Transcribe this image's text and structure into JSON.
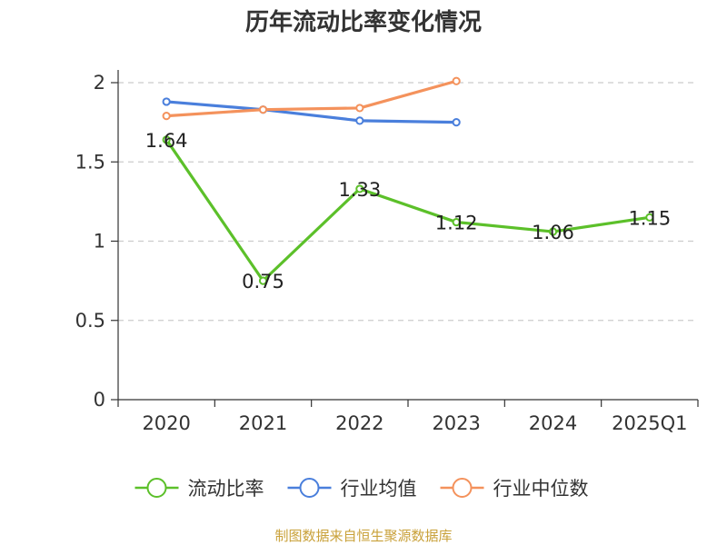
{
  "chart_data": {
    "type": "line",
    "title": "历年流动比率变化情况",
    "categories": [
      "2020",
      "2021",
      "2022",
      "2023",
      "2024",
      "2025Q1"
    ],
    "ylim": [
      0,
      2
    ],
    "yticks": [
      0,
      0.5,
      1,
      1.5,
      2
    ],
    "ytick_labels": [
      "0",
      "0.5",
      "1",
      "1.5",
      "2"
    ],
    "grid": true,
    "legend_position": "bottom",
    "series": [
      {
        "name": "流动比率",
        "color": "#5cc02a",
        "values": [
          1.64,
          0.75,
          1.33,
          1.12,
          1.06,
          1.15
        ],
        "data_labels": [
          "1.64",
          "0.75",
          "1.33",
          "1.12",
          "1.06",
          "1.15"
        ]
      },
      {
        "name": "行业均值",
        "color": "#4a7fdc",
        "values": [
          1.88,
          1.83,
          1.76,
          1.75,
          null,
          null
        ]
      },
      {
        "name": "行业中位数",
        "color": "#f4925c",
        "values": [
          1.79,
          1.83,
          1.84,
          2.01,
          null,
          null
        ]
      }
    ],
    "source": "制图数据来自恒生聚源数据库"
  }
}
